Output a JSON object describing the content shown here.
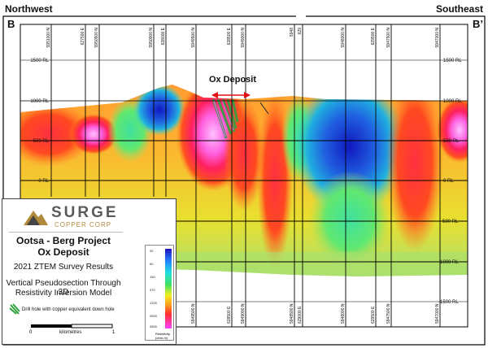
{
  "header": {
    "left_direction": "Northwest",
    "right_direction": "Southeast",
    "left_section": "B",
    "right_section": "B’"
  },
  "section": {
    "deposit_label": "Ox Deposit",
    "elevation_labels_left": [
      "1500 RL",
      "1000 RL",
      "500 RL",
      "0 RL"
    ],
    "elevation_labels_right": [
      "1500 RL",
      "1000 RL",
      "500 RL",
      "0 RL",
      "-500 RL",
      "-1000 RL",
      "-1500 RL"
    ],
    "top_coord_labels": [
      "5951000 N",
      "627500 E",
      "5950500 N",
      "5950000 N",
      "628000 E",
      "5949500 N",
      "628500 E",
      "5949000 N",
      "5948",
      "629",
      "5948000 N",
      "629500 E",
      "5947500 N",
      "5947000 N"
    ],
    "bottom_coord_labels": [
      "5949500 N",
      "628500 E",
      "5949000 N",
      "5948500 N",
      "629000 E",
      "5948000 N",
      "629500 E",
      "5947500 N",
      "5947000 N"
    ]
  },
  "legend": {
    "company_name": "SURGE",
    "company_sub": "COPPER CORP",
    "project_title": "Ootsa - Berg Project",
    "project_subtitle": "Ox Deposit",
    "survey": "2021 ZTEM Survey Results",
    "description_line1": "Vertical Pseudosection Through 3D",
    "description_line2": "Resistivity Inversion Model",
    "drill_hole_label": "Drill hole with copper equivalent down hole",
    "scale_label": "kilometres",
    "scale_start": "0",
    "scale_end": "1",
    "colorbar_ticks": [
      "30",
      "60",
      "150",
      "370",
      "1200",
      "2500",
      "3800"
    ],
    "colorbar_unit_line1": "Resistivity",
    "colorbar_unit_line2": "(ohm-m)"
  },
  "colors": {
    "conductive": "#1020c8",
    "resistive": "#ff40ff",
    "arrow": "#e01010",
    "logo_gold": "#b08a3c"
  }
}
